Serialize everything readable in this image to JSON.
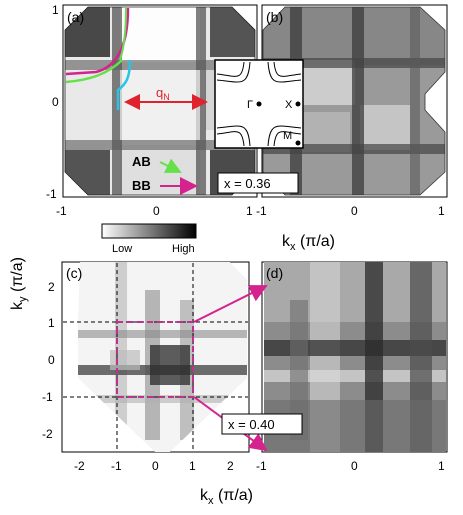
{
  "figure": {
    "panel_labels": {
      "a": "(a)",
      "b": "(b)",
      "c": "(c)",
      "d": "(d)"
    },
    "ky_axis_label": "k",
    "ky_axis_sub": "y",
    "ky_axis_unit": " (π/a)",
    "kx_axis_label": "k",
    "kx_axis_sub": "x",
    "kx_axis_unit": " (π/a)",
    "top_y_ticks": [
      "1",
      "0",
      "-1"
    ],
    "top_x_ticks": [
      "-1",
      "0",
      "1"
    ],
    "b_x_ticks": [
      "-1",
      "0",
      "1"
    ],
    "bottom_y_ticks": [
      "2",
      "1",
      "0",
      "-1",
      "-2"
    ],
    "c_x_ticks": [
      "-2",
      "-1",
      "0",
      "1",
      "2"
    ],
    "d_x_ticks": [
      "-1",
      "0",
      "1"
    ],
    "colorbar": {
      "low": "Low",
      "high": "High"
    },
    "inset": {
      "gamma": "Γ",
      "x": "X",
      "m": "M"
    },
    "annotations": {
      "q": "q",
      "q_sub": "N",
      "ab": "AB",
      "bb": "BB",
      "doping_top": "x = 0.36",
      "doping_bottom": "x = 0.40"
    },
    "colors": {
      "magenta": "#d4238f",
      "green": "#66e04a",
      "cyan": "#26c4e6",
      "red": "#e0222e",
      "dashed_magenta": "#c0308f"
    }
  }
}
